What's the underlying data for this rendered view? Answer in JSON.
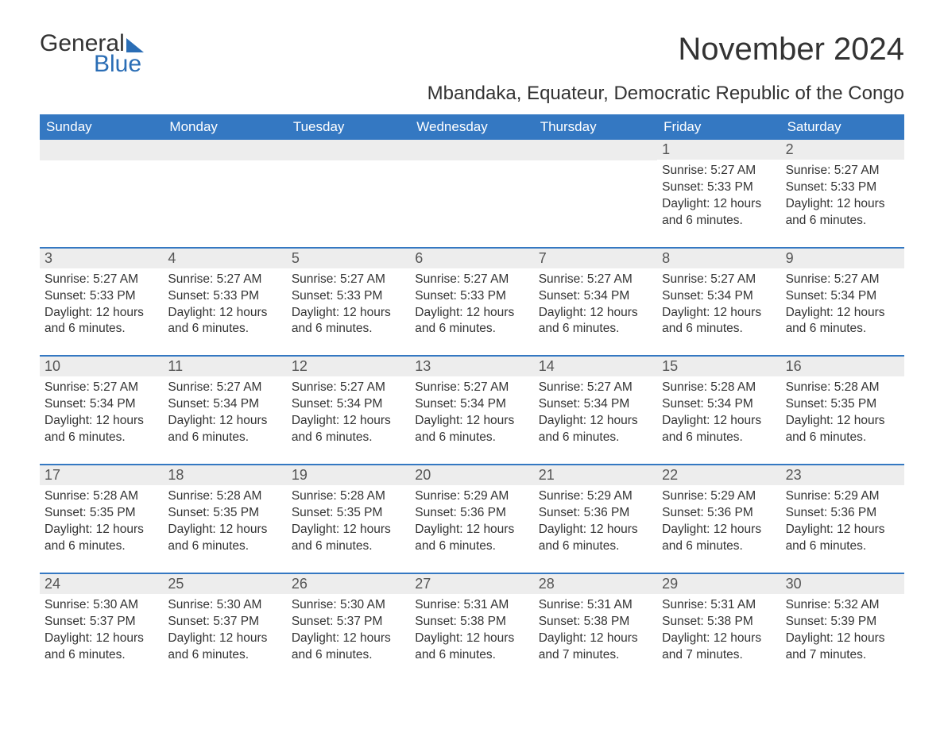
{
  "logo": {
    "word1": "General",
    "word2": "Blue"
  },
  "title": "November 2024",
  "location": "Mbandaka, Equateur, Democratic Republic of the Congo",
  "colors": {
    "header_bg": "#3478c2",
    "header_text": "#ffffff",
    "daynum_bg": "#ededed",
    "border": "#3478c2",
    "text": "#333333",
    "logo_accent": "#2a6db5"
  },
  "weekdays": [
    "Sunday",
    "Monday",
    "Tuesday",
    "Wednesday",
    "Thursday",
    "Friday",
    "Saturday"
  ],
  "labels": {
    "sunrise": "Sunrise:",
    "sunset": "Sunset:",
    "daylight": "Daylight:"
  },
  "weeks": [
    [
      null,
      null,
      null,
      null,
      null,
      {
        "n": "1",
        "sunrise": "5:27 AM",
        "sunset": "5:33 PM",
        "daylight": "12 hours and 6 minutes."
      },
      {
        "n": "2",
        "sunrise": "5:27 AM",
        "sunset": "5:33 PM",
        "daylight": "12 hours and 6 minutes."
      }
    ],
    [
      {
        "n": "3",
        "sunrise": "5:27 AM",
        "sunset": "5:33 PM",
        "daylight": "12 hours and 6 minutes."
      },
      {
        "n": "4",
        "sunrise": "5:27 AM",
        "sunset": "5:33 PM",
        "daylight": "12 hours and 6 minutes."
      },
      {
        "n": "5",
        "sunrise": "5:27 AM",
        "sunset": "5:33 PM",
        "daylight": "12 hours and 6 minutes."
      },
      {
        "n": "6",
        "sunrise": "5:27 AM",
        "sunset": "5:33 PM",
        "daylight": "12 hours and 6 minutes."
      },
      {
        "n": "7",
        "sunrise": "5:27 AM",
        "sunset": "5:34 PM",
        "daylight": "12 hours and 6 minutes."
      },
      {
        "n": "8",
        "sunrise": "5:27 AM",
        "sunset": "5:34 PM",
        "daylight": "12 hours and 6 minutes."
      },
      {
        "n": "9",
        "sunrise": "5:27 AM",
        "sunset": "5:34 PM",
        "daylight": "12 hours and 6 minutes."
      }
    ],
    [
      {
        "n": "10",
        "sunrise": "5:27 AM",
        "sunset": "5:34 PM",
        "daylight": "12 hours and 6 minutes."
      },
      {
        "n": "11",
        "sunrise": "5:27 AM",
        "sunset": "5:34 PM",
        "daylight": "12 hours and 6 minutes."
      },
      {
        "n": "12",
        "sunrise": "5:27 AM",
        "sunset": "5:34 PM",
        "daylight": "12 hours and 6 minutes."
      },
      {
        "n": "13",
        "sunrise": "5:27 AM",
        "sunset": "5:34 PM",
        "daylight": "12 hours and 6 minutes."
      },
      {
        "n": "14",
        "sunrise": "5:27 AM",
        "sunset": "5:34 PM",
        "daylight": "12 hours and 6 minutes."
      },
      {
        "n": "15",
        "sunrise": "5:28 AM",
        "sunset": "5:34 PM",
        "daylight": "12 hours and 6 minutes."
      },
      {
        "n": "16",
        "sunrise": "5:28 AM",
        "sunset": "5:35 PM",
        "daylight": "12 hours and 6 minutes."
      }
    ],
    [
      {
        "n": "17",
        "sunrise": "5:28 AM",
        "sunset": "5:35 PM",
        "daylight": "12 hours and 6 minutes."
      },
      {
        "n": "18",
        "sunrise": "5:28 AM",
        "sunset": "5:35 PM",
        "daylight": "12 hours and 6 minutes."
      },
      {
        "n": "19",
        "sunrise": "5:28 AM",
        "sunset": "5:35 PM",
        "daylight": "12 hours and 6 minutes."
      },
      {
        "n": "20",
        "sunrise": "5:29 AM",
        "sunset": "5:36 PM",
        "daylight": "12 hours and 6 minutes."
      },
      {
        "n": "21",
        "sunrise": "5:29 AM",
        "sunset": "5:36 PM",
        "daylight": "12 hours and 6 minutes."
      },
      {
        "n": "22",
        "sunrise": "5:29 AM",
        "sunset": "5:36 PM",
        "daylight": "12 hours and 6 minutes."
      },
      {
        "n": "23",
        "sunrise": "5:29 AM",
        "sunset": "5:36 PM",
        "daylight": "12 hours and 6 minutes."
      }
    ],
    [
      {
        "n": "24",
        "sunrise": "5:30 AM",
        "sunset": "5:37 PM",
        "daylight": "12 hours and 6 minutes."
      },
      {
        "n": "25",
        "sunrise": "5:30 AM",
        "sunset": "5:37 PM",
        "daylight": "12 hours and 6 minutes."
      },
      {
        "n": "26",
        "sunrise": "5:30 AM",
        "sunset": "5:37 PM",
        "daylight": "12 hours and 6 minutes."
      },
      {
        "n": "27",
        "sunrise": "5:31 AM",
        "sunset": "5:38 PM",
        "daylight": "12 hours and 6 minutes."
      },
      {
        "n": "28",
        "sunrise": "5:31 AM",
        "sunset": "5:38 PM",
        "daylight": "12 hours and 7 minutes."
      },
      {
        "n": "29",
        "sunrise": "5:31 AM",
        "sunset": "5:38 PM",
        "daylight": "12 hours and 7 minutes."
      },
      {
        "n": "30",
        "sunrise": "5:32 AM",
        "sunset": "5:39 PM",
        "daylight": "12 hours and 7 minutes."
      }
    ]
  ]
}
